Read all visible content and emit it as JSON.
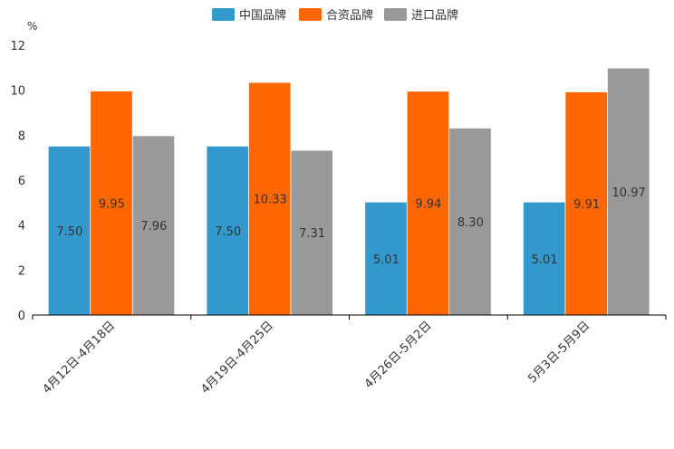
{
  "chart_data": {
    "type": "bar",
    "title": "",
    "xlabel": "",
    "ylabel": "%",
    "ylim": [
      0,
      12
    ],
    "yticks": [
      0,
      2,
      4,
      6,
      8,
      10,
      12
    ],
    "grid": false,
    "legend_position": "top-center",
    "categories": [
      "4月12日-4月18日",
      "4月19日-4月25日",
      "4月26日-5月2日",
      "5月3日-5月9日"
    ],
    "series": [
      {
        "name": "中国品牌",
        "color": "#3399cc",
        "values": [
          7.5,
          7.5,
          5.01,
          5.01
        ],
        "labels": [
          "7.50",
          "7.50",
          "5.01",
          "5.01"
        ]
      },
      {
        "name": "合资品牌",
        "color": "#ff6600",
        "values": [
          9.95,
          10.33,
          9.94,
          9.91
        ],
        "labels": [
          "9.95",
          "10.33",
          "9.94",
          "9.91"
        ]
      },
      {
        "name": "进口品牌",
        "color": "#999999",
        "values": [
          7.96,
          7.31,
          8.3,
          10.97
        ],
        "labels": [
          "7.96",
          "7.31",
          "8.30",
          "10.97"
        ]
      }
    ]
  }
}
